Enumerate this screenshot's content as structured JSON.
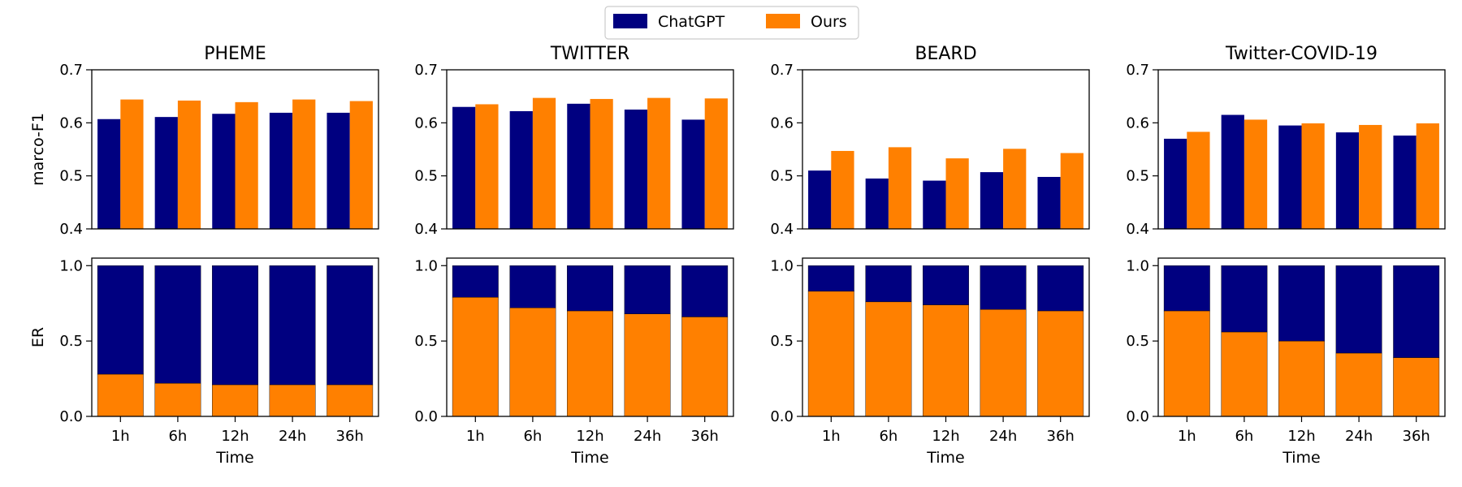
{
  "chart_data": {
    "type": "bar",
    "legend": [
      {
        "name": "ChatGPT",
        "color": "#000080"
      },
      {
        "name": "Ours",
        "color": "#ff8000"
      }
    ],
    "categories": [
      "1h",
      "6h",
      "12h",
      "24h",
      "36h"
    ],
    "xlabel": "Time",
    "rows": [
      {
        "ylabel": "marco-F1",
        "ylim": [
          0.4,
          0.7
        ],
        "yticks": [
          "0.4",
          "0.5",
          "0.6",
          "0.7"
        ],
        "ytick_values": [
          0.4,
          0.5,
          0.6,
          0.7
        ],
        "kind": "grouped"
      },
      {
        "ylabel": "ER",
        "ylim": [
          0.0,
          1.05
        ],
        "yticks": [
          "0.0",
          "0.5",
          "1.0"
        ],
        "ytick_values": [
          0.0,
          0.5,
          1.0
        ],
        "kind": "stacked"
      }
    ],
    "panels": [
      {
        "title": "PHEME",
        "f1": {
          "ChatGPT": [
            0.607,
            0.611,
            0.617,
            0.619,
            0.619
          ],
          "Ours": [
            0.644,
            0.642,
            0.639,
            0.644,
            0.641
          ]
        },
        "er": {
          "ChatGPT": [
            0.72,
            0.78,
            0.79,
            0.79,
            0.79
          ],
          "Ours": [
            0.28,
            0.22,
            0.21,
            0.21,
            0.21
          ]
        }
      },
      {
        "title": "TWITTER",
        "f1": {
          "ChatGPT": [
            0.63,
            0.622,
            0.636,
            0.625,
            0.606
          ],
          "Ours": [
            0.635,
            0.647,
            0.645,
            0.647,
            0.646
          ]
        },
        "er": {
          "ChatGPT": [
            0.21,
            0.28,
            0.3,
            0.32,
            0.34
          ],
          "Ours": [
            0.79,
            0.72,
            0.7,
            0.68,
            0.66
          ]
        }
      },
      {
        "title": "BEARD",
        "f1": {
          "ChatGPT": [
            0.51,
            0.495,
            0.491,
            0.507,
            0.498
          ],
          "Ours": [
            0.547,
            0.554,
            0.533,
            0.551,
            0.543
          ]
        },
        "er": {
          "ChatGPT": [
            0.17,
            0.24,
            0.26,
            0.29,
            0.3
          ],
          "Ours": [
            0.83,
            0.76,
            0.74,
            0.71,
            0.7
          ]
        }
      },
      {
        "title": "Twitter-COVID-19",
        "f1": {
          "ChatGPT": [
            0.57,
            0.615,
            0.595,
            0.582,
            0.576
          ],
          "Ours": [
            0.583,
            0.606,
            0.599,
            0.596,
            0.599
          ]
        },
        "er": {
          "ChatGPT": [
            0.3,
            0.44,
            0.5,
            0.58,
            0.61
          ],
          "Ours": [
            0.7,
            0.56,
            0.5,
            0.42,
            0.39
          ]
        }
      }
    ]
  }
}
